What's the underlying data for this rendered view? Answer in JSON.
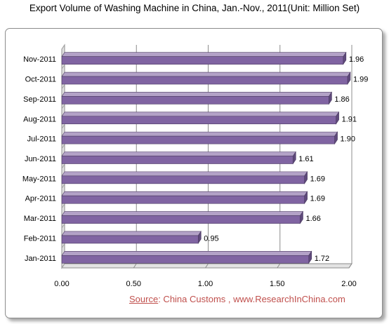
{
  "title": "Export Volume of Washing Machine in China, Jan.-Nov., 2011(Unit:  Million Set)",
  "source": {
    "label": "Source",
    "text": ": China Customs , www.ResearchInChina.com"
  },
  "colors": {
    "bar_front": "#8064a2",
    "bar_top": "#b3a2c7",
    "bar_side": "#5f4a7b",
    "source_text": "#c0504d"
  },
  "chart_data": {
    "type": "bar",
    "orientation": "horizontal",
    "style": "3d",
    "title": "Export Volume of Washing Machine in China, Jan.-Nov., 2011(Unit:  Million Set)",
    "categories": [
      "Jan-2011",
      "Feb-2011",
      "Mar-2011",
      "Apr-2011",
      "May-2011",
      "Jun-2011",
      "Jul-2011",
      "Aug-2011",
      "Sep-2011",
      "Oct-2011",
      "Nov-2011"
    ],
    "values": [
      1.72,
      0.95,
      1.66,
      1.69,
      1.69,
      1.61,
      1.9,
      1.91,
      1.86,
      1.99,
      1.96
    ],
    "value_labels": [
      "1.72",
      "0.95",
      "1.66",
      "1.69",
      "1.69",
      "1.61",
      "1.90",
      "1.91",
      "1.86",
      "1.99",
      "1.96"
    ],
    "xticks": [
      "0.00",
      "0.50",
      "1.00",
      "1.50",
      "2.00"
    ],
    "xlim": [
      0,
      2.0
    ],
    "grid": true,
    "legend": "none"
  }
}
